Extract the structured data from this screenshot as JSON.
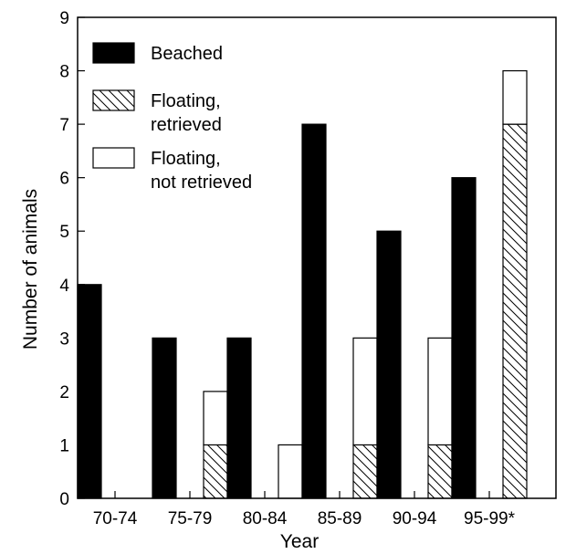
{
  "chart_data": {
    "type": "bar",
    "stacked_groups": true,
    "categories": [
      "70-74",
      "75-79",
      "80-84",
      "85-89",
      "90-94",
      "95-99*"
    ],
    "series": [
      {
        "name": "Beached",
        "stack": "beached",
        "values": [
          4,
          3,
          3,
          7,
          5,
          6
        ],
        "fill": "solid-black"
      },
      {
        "name": "Floating, retrieved",
        "stack": "floating",
        "values": [
          0,
          1,
          0,
          1,
          1,
          7
        ],
        "fill": "hatched"
      },
      {
        "name": "Floating, not retrieved",
        "stack": "floating",
        "values": [
          0,
          1,
          1,
          2,
          2,
          1
        ],
        "fill": "white"
      }
    ],
    "xlabel": "Year",
    "ylabel": "Number of animals",
    "ylim": [
      0,
      9
    ],
    "yticks": [
      0,
      1,
      2,
      3,
      4,
      5,
      6,
      7,
      8,
      9
    ],
    "grid": false,
    "legend_position": "top-left",
    "legend": [
      {
        "line1": "Beached",
        "line2": ""
      },
      {
        "line1": "Floating,",
        "line2": "retrieved"
      },
      {
        "line1": "Floating,",
        "line2": "not retrieved"
      }
    ],
    "colors": {
      "beached": "#000000",
      "outline": "#000000",
      "white": "#ffffff"
    }
  }
}
